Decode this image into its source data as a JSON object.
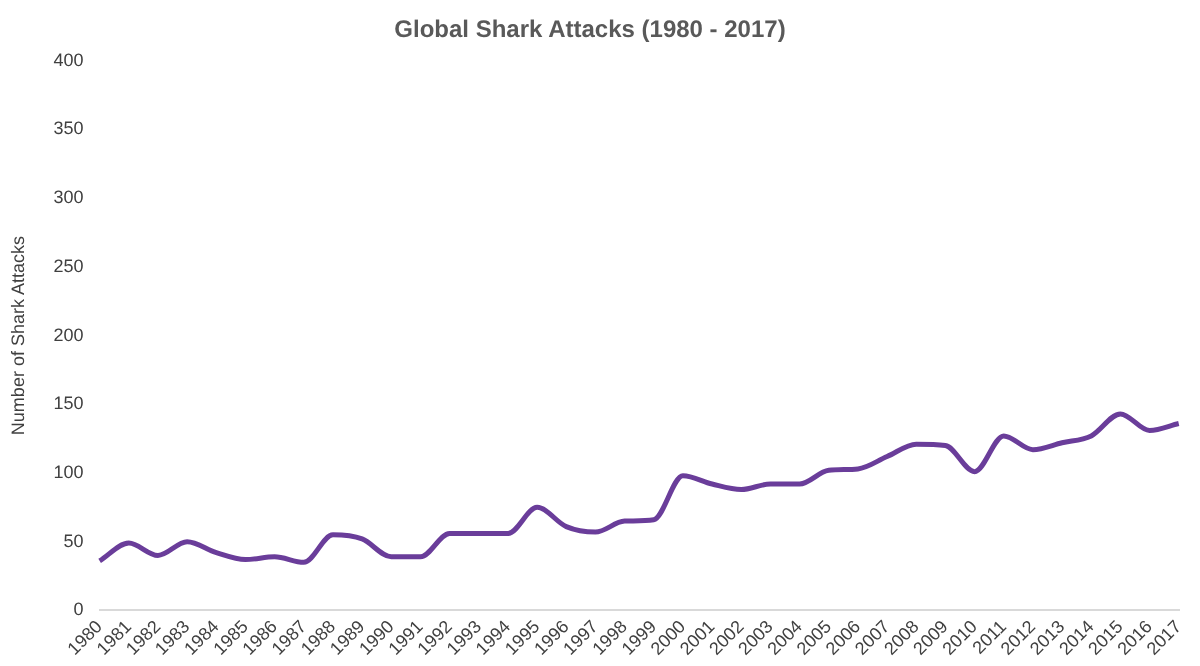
{
  "chart_data": {
    "type": "line",
    "title": "Global Shark Attacks (1980 - 2017)",
    "ylabel": "Number of Shark Attacks",
    "categories": [
      "1980",
      "1981",
      "1982",
      "1983",
      "1984",
      "1985",
      "1986",
      "1987",
      "1988",
      "1989",
      "1990",
      "1991",
      "1992",
      "1993",
      "1994",
      "1995",
      "1996",
      "1997",
      "1998",
      "1999",
      "2000",
      "2001",
      "2002",
      "2003",
      "2004",
      "2005",
      "2006",
      "2007",
      "2008",
      "2009",
      "2010",
      "2011",
      "2012",
      "2013",
      "2014",
      "2015",
      "2016",
      "2017"
    ],
    "series": [
      {
        "color": "#6a3d9a",
        "values": [
          36,
          49,
          40,
          50,
          42,
          37,
          39,
          35,
          55,
          52,
          39,
          39,
          56,
          56,
          56,
          75,
          61,
          57,
          65,
          66,
          98,
          92,
          88,
          92,
          92,
          102,
          103,
          112,
          121,
          120,
          101,
          127,
          117,
          122,
          127,
          143,
          131,
          136
        ]
      }
    ],
    "ylim": [
      0,
      400
    ],
    "yticks": [
      0,
      50,
      100,
      150,
      200,
      250,
      300,
      350,
      400
    ],
    "grid": false,
    "legend": false,
    "marker": "none",
    "line_style": "solid"
  }
}
